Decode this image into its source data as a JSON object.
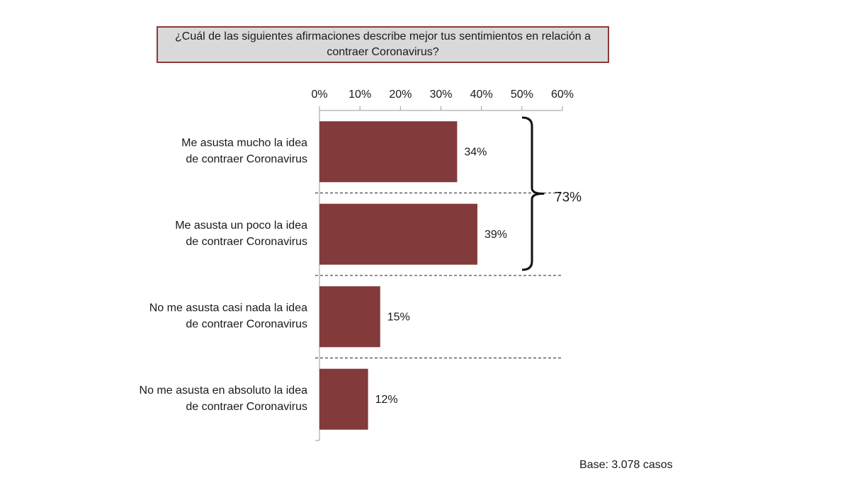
{
  "chart_data": {
    "type": "bar",
    "orientation": "horizontal",
    "title": "¿Cuál de las siguientes afirmaciones describe mejor tus sentimientos en relación a contraer Coronavirus?",
    "categories": [
      [
        "Me asusta mucho la idea",
        "de contraer Coronavirus"
      ],
      [
        "Me asusta un poco la idea",
        "de contraer Coronavirus"
      ],
      [
        "No me asusta casi nada la idea",
        "de contraer Coronavirus"
      ],
      [
        "No me asusta en absoluto la idea",
        "de contraer Coronavirus"
      ]
    ],
    "values": [
      34,
      39,
      15,
      12
    ],
    "value_labels": [
      "34%",
      "39%",
      "15%",
      "12%"
    ],
    "x_ticks": [
      "0%",
      "10%",
      "20%",
      "30%",
      "40%",
      "50%",
      "60%"
    ],
    "xlim": [
      0,
      60
    ],
    "axis_position": "top",
    "bar_color": "#833a3a",
    "grouping_bracket": {
      "categories": [
        0,
        1
      ],
      "label": "73%"
    },
    "legend": "none"
  },
  "footer": {
    "base_note": "Base: 3.078 casos"
  }
}
